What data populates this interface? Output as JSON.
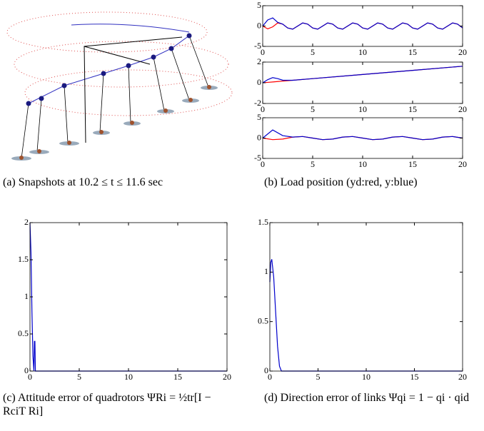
{
  "captions": [
    "(a) Snapshots at 10.2 ≤ t ≤ 11.6 sec",
    "(b) Load position (yd:red, y:blue)",
    "(c) Attitude error of quadrotors ΨRi = ½tr[I − RciT Ri]",
    "(d) Direction error of links Ψqi = 1 − qi · qid"
  ],
  "chart_data": [
    {
      "type": "line",
      "xlim": [
        0,
        20
      ],
      "xticks": [
        0,
        5,
        10,
        15,
        20
      ],
      "ylim": [
        -5,
        5
      ],
      "yticks": [
        -5,
        0,
        5
      ],
      "x": [
        0,
        0.5,
        1,
        1.5,
        2,
        2.5,
        3,
        3.5,
        4,
        4.5,
        5,
        5.5,
        6,
        6.5,
        7,
        7.5,
        8,
        8.5,
        9,
        9.5,
        10,
        10.5,
        11,
        11.5,
        12,
        12.5,
        13,
        13.5,
        14,
        14.5,
        15,
        15.5,
        16,
        16.5,
        17,
        17.5,
        18,
        18.5,
        19,
        19.5,
        20
      ],
      "series": [
        {
          "color": "#ff0000",
          "values": [
            0,
            -0.7,
            -0.2,
            0.76,
            0.47,
            -0.47,
            -0.76,
            0,
            0.76,
            0.47,
            -0.47,
            -0.76,
            0,
            0.76,
            0.47,
            -0.47,
            -0.76,
            0,
            0.76,
            0.47,
            -0.47,
            -0.76,
            0,
            0.76,
            0.47,
            -0.47,
            -0.76,
            0,
            0.76,
            0.47,
            -0.47,
            -0.76,
            0,
            0.76,
            0.47,
            -0.47,
            -0.76,
            0,
            0.76,
            0.47,
            -0.47
          ]
        },
        {
          "color": "#0000cc",
          "values": [
            0,
            1.5,
            2.0,
            0.9,
            0.47,
            -0.47,
            -0.76,
            0,
            0.76,
            0.47,
            -0.47,
            -0.76,
            0,
            0.76,
            0.47,
            -0.47,
            -0.76,
            0,
            0.76,
            0.47,
            -0.47,
            -0.76,
            0,
            0.76,
            0.47,
            -0.47,
            -0.76,
            0,
            0.76,
            0.47,
            -0.47,
            -0.76,
            0,
            0.76,
            0.47,
            -0.47,
            -0.76,
            0,
            0.76,
            0.47,
            -0.47
          ]
        }
      ]
    },
    {
      "type": "line",
      "xlim": [
        0,
        20
      ],
      "xticks": [
        0,
        5,
        10,
        15,
        20
      ],
      "ylim": [
        -2,
        2
      ],
      "yticks": [
        -2,
        0,
        2
      ],
      "x": [
        0,
        0.5,
        1,
        1.5,
        2,
        3,
        5,
        10,
        15,
        20
      ],
      "series": [
        {
          "color": "#ff0000",
          "values": [
            0,
            0.04,
            0.08,
            0.12,
            0.16,
            0.24,
            0.4,
            0.8,
            1.2,
            1.6
          ]
        },
        {
          "color": "#0000cc",
          "values": [
            0,
            0.3,
            0.5,
            0.4,
            0.25,
            0.24,
            0.4,
            0.8,
            1.2,
            1.6
          ]
        }
      ]
    },
    {
      "type": "line",
      "xlim": [
        0,
        20
      ],
      "xticks": [
        0,
        5,
        10,
        15,
        20
      ],
      "ylim": [
        -5,
        5
      ],
      "yticks": [
        -5,
        0,
        5
      ],
      "x": [
        0,
        1,
        2,
        3,
        4,
        5,
        6,
        7,
        8,
        9,
        10,
        11,
        12,
        13,
        14,
        15,
        16,
        17,
        18,
        19,
        20
      ],
      "series": [
        {
          "color": "#ff0000",
          "values": [
            0,
            -0.38,
            -0.24,
            0.24,
            0.38,
            0,
            -0.38,
            -0.24,
            0.24,
            0.38,
            0,
            -0.38,
            -0.24,
            0.24,
            0.38,
            0,
            -0.38,
            -0.24,
            0.24,
            0.38,
            0
          ]
        },
        {
          "color": "#0000cc",
          "values": [
            0,
            2.0,
            0.6,
            0.24,
            0.38,
            0,
            -0.38,
            -0.24,
            0.24,
            0.38,
            0,
            -0.38,
            -0.24,
            0.24,
            0.38,
            0,
            -0.38,
            -0.24,
            0.24,
            0.38,
            0
          ]
        }
      ]
    },
    {
      "type": "line",
      "xlim": [
        0,
        20
      ],
      "xticks": [
        0,
        5,
        10,
        15,
        20
      ],
      "ylim": [
        0,
        2
      ],
      "yticks": [
        0,
        0.5,
        1,
        1.5,
        2
      ],
      "x": [
        0,
        0.1,
        0.2,
        0.3,
        0.4,
        0.45,
        0.5,
        0.55,
        0.6,
        20
      ],
      "series": [
        {
          "color": "#0000cc",
          "values": [
            2,
            1.6,
            0.8,
            0.2,
            0,
            0.4,
            0.4,
            0,
            0,
            0
          ]
        }
      ]
    },
    {
      "type": "line",
      "xlim": [
        0,
        20
      ],
      "xticks": [
        0,
        5,
        10,
        15,
        20
      ],
      "ylim": [
        0,
        1.5
      ],
      "yticks": [
        0,
        0.5,
        1,
        1.5
      ],
      "x": [
        0,
        0.1,
        0.2,
        0.4,
        0.6,
        0.8,
        1.0,
        1.2,
        20
      ],
      "series": [
        {
          "color": "#0000cc",
          "values": [
            0.9,
            1.1,
            1.13,
            0.95,
            0.6,
            0.25,
            0.05,
            0,
            0
          ]
        }
      ]
    }
  ]
}
